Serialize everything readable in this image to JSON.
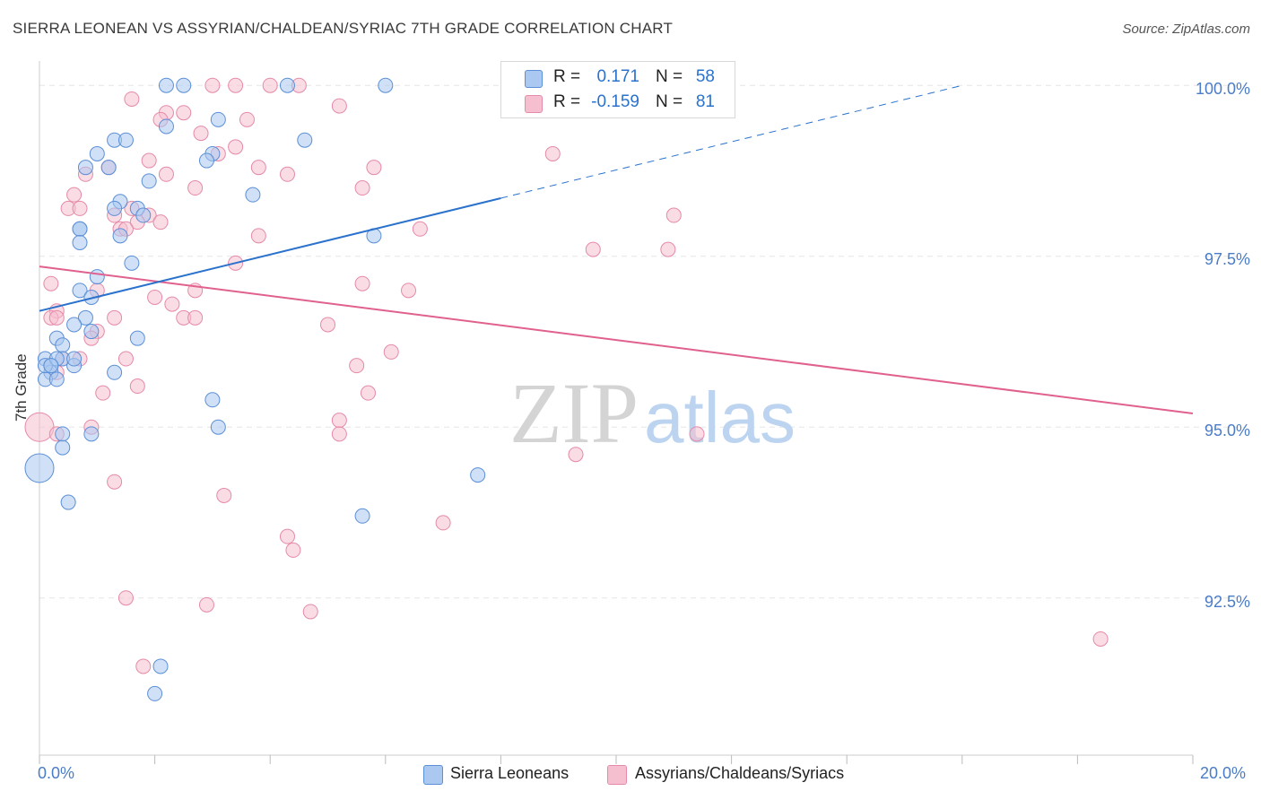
{
  "title": "SIERRA LEONEAN VS ASSYRIAN/CHALDEAN/SYRIAC 7TH GRADE CORRELATION CHART",
  "source": "Source: ZipAtlas.com",
  "watermark": {
    "zip": "ZIP",
    "atlas": "atlas"
  },
  "legend": {
    "series1": {
      "r_label": "R =",
      "r_value": "0.171",
      "n_label": "N =",
      "n_value": "58"
    },
    "series2": {
      "r_label": "R =",
      "r_value": "-0.159",
      "n_label": "N =",
      "n_value": "81"
    }
  },
  "bottom_legend": {
    "series1": "Sierra Leoneans",
    "series2": "Assyrians/Chaldeans/Syriacs"
  },
  "colors": {
    "blue_fill": "#aac8f0",
    "blue_stroke": "#5b8fd6",
    "blue_line": "#2a72cc",
    "pink_fill": "#f6bfd0",
    "pink_stroke": "#e58aa8",
    "pink_line": "#e0608e",
    "tick_label": "#4a7cc7",
    "grid": "#e6e6e6"
  },
  "chart_data": {
    "type": "scatter",
    "title": "SIERRA LEONEAN VS ASSYRIAN/CHALDEAN/SYRIAC 7TH GRADE CORRELATION CHART",
    "xlabel": "",
    "ylabel": "7th Grade",
    "xlim": [
      0,
      20
    ],
    "ylim": [
      90.2,
      100.2
    ],
    "x_tick_labels": [
      "0.0%",
      "20.0%"
    ],
    "y_ticks": [
      92.5,
      95.0,
      97.5,
      100.0
    ],
    "y_tick_labels": [
      "92.5%",
      "95.0%",
      "97.5%",
      "100.0%"
    ],
    "series": [
      {
        "name": "Sierra Leoneans",
        "r": 0.171,
        "n": 58,
        "trend": {
          "x_start": 0.0,
          "y_start": 96.7,
          "x_solid_end": 8.0,
          "y_solid_end": 98.35,
          "x_dash_end": 16.0,
          "y_dash_end": 100.0
        },
        "points": [
          [
            2.2,
            100.0
          ],
          [
            2.5,
            100.0
          ],
          [
            4.3,
            100.0
          ],
          [
            6.0,
            100.0
          ],
          [
            3.1,
            99.5
          ],
          [
            2.2,
            99.4
          ],
          [
            1.3,
            99.2
          ],
          [
            1.5,
            99.2
          ],
          [
            4.6,
            99.2
          ],
          [
            1.0,
            99.0
          ],
          [
            3.0,
            99.0
          ],
          [
            2.9,
            98.9
          ],
          [
            0.8,
            98.8
          ],
          [
            1.2,
            98.8
          ],
          [
            1.9,
            98.6
          ],
          [
            3.7,
            98.4
          ],
          [
            1.4,
            98.3
          ],
          [
            1.3,
            98.2
          ],
          [
            1.7,
            98.2
          ],
          [
            1.8,
            98.1
          ],
          [
            0.7,
            97.9
          ],
          [
            0.7,
            97.9
          ],
          [
            1.4,
            97.8
          ],
          [
            5.8,
            97.8
          ],
          [
            0.7,
            97.7
          ],
          [
            1.6,
            97.4
          ],
          [
            1.0,
            97.2
          ],
          [
            0.7,
            97.0
          ],
          [
            0.9,
            96.9
          ],
          [
            0.8,
            96.6
          ],
          [
            0.6,
            96.5
          ],
          [
            0.9,
            96.4
          ],
          [
            1.7,
            96.3
          ],
          [
            0.3,
            96.3
          ],
          [
            0.4,
            96.2
          ],
          [
            0.4,
            96.0
          ],
          [
            0.1,
            96.0
          ],
          [
            0.6,
            95.9
          ],
          [
            0.2,
            95.9
          ],
          [
            0.2,
            95.8
          ],
          [
            1.3,
            95.8
          ],
          [
            0.1,
            95.7
          ],
          [
            0.3,
            95.7
          ],
          [
            3.0,
            95.4
          ],
          [
            3.1,
            95.0
          ],
          [
            0.4,
            94.9
          ],
          [
            0.9,
            94.9
          ],
          [
            0.4,
            94.7
          ],
          [
            0.0,
            94.4
          ],
          [
            7.6,
            94.3
          ],
          [
            0.5,
            93.9
          ],
          [
            5.6,
            93.7
          ],
          [
            2.1,
            91.5
          ],
          [
            2.0,
            91.1
          ],
          [
            0.1,
            95.9
          ],
          [
            0.3,
            96.0
          ],
          [
            0.2,
            95.9
          ],
          [
            0.6,
            96.0
          ]
        ]
      },
      {
        "name": "Assyrians/Chaldeans/Syriacs",
        "r": -0.159,
        "n": 81,
        "trend": {
          "x_start": 0.0,
          "y_start": 97.35,
          "x_end": 20.0,
          "y_end": 95.2
        },
        "points": [
          [
            3.0,
            100.0
          ],
          [
            3.4,
            100.0
          ],
          [
            4.0,
            100.0
          ],
          [
            4.5,
            100.0
          ],
          [
            1.6,
            99.8
          ],
          [
            5.2,
            99.7
          ],
          [
            2.2,
            99.6
          ],
          [
            2.5,
            99.6
          ],
          [
            2.1,
            99.5
          ],
          [
            3.6,
            99.5
          ],
          [
            2.8,
            99.3
          ],
          [
            3.4,
            99.1
          ],
          [
            3.1,
            99.0
          ],
          [
            8.9,
            99.0
          ],
          [
            1.9,
            98.9
          ],
          [
            1.2,
            98.8
          ],
          [
            3.8,
            98.8
          ],
          [
            5.8,
            98.8
          ],
          [
            0.8,
            98.7
          ],
          [
            2.2,
            98.7
          ],
          [
            4.3,
            98.7
          ],
          [
            5.6,
            98.5
          ],
          [
            2.7,
            98.5
          ],
          [
            0.6,
            98.4
          ],
          [
            0.5,
            98.2
          ],
          [
            0.7,
            98.2
          ],
          [
            1.6,
            98.2
          ],
          [
            1.3,
            98.1
          ],
          [
            1.9,
            98.1
          ],
          [
            2.1,
            98.0
          ],
          [
            1.7,
            98.0
          ],
          [
            11.0,
            98.1
          ],
          [
            1.4,
            97.9
          ],
          [
            1.5,
            97.9
          ],
          [
            6.6,
            97.9
          ],
          [
            3.8,
            97.8
          ],
          [
            9.6,
            97.6
          ],
          [
            10.9,
            97.6
          ],
          [
            3.4,
            97.4
          ],
          [
            0.2,
            97.1
          ],
          [
            5.6,
            97.1
          ],
          [
            6.4,
            97.0
          ],
          [
            2.7,
            97.0
          ],
          [
            1.0,
            97.0
          ],
          [
            2.0,
            96.9
          ],
          [
            2.3,
            96.8
          ],
          [
            0.3,
            96.7
          ],
          [
            2.5,
            96.6
          ],
          [
            2.7,
            96.6
          ],
          [
            0.2,
            96.6
          ],
          [
            1.3,
            96.6
          ],
          [
            5.0,
            96.5
          ],
          [
            1.0,
            96.4
          ],
          [
            0.9,
            96.3
          ],
          [
            6.1,
            96.1
          ],
          [
            1.5,
            96.0
          ],
          [
            0.4,
            96.0
          ],
          [
            0.7,
            96.0
          ],
          [
            5.5,
            95.9
          ],
          [
            0.3,
            95.8
          ],
          [
            1.7,
            95.6
          ],
          [
            1.1,
            95.5
          ],
          [
            5.7,
            95.5
          ],
          [
            5.2,
            95.1
          ],
          [
            0.9,
            95.0
          ],
          [
            0.0,
            95.0
          ],
          [
            0.3,
            94.9
          ],
          [
            5.2,
            94.9
          ],
          [
            11.4,
            94.9
          ],
          [
            9.3,
            94.6
          ],
          [
            1.3,
            94.2
          ],
          [
            3.2,
            94.0
          ],
          [
            7.0,
            93.6
          ],
          [
            4.3,
            93.4
          ],
          [
            4.4,
            93.2
          ],
          [
            1.5,
            92.5
          ],
          [
            2.9,
            92.4
          ],
          [
            4.7,
            92.3
          ],
          [
            18.4,
            91.9
          ],
          [
            1.8,
            91.5
          ],
          [
            0.3,
            96.6
          ]
        ]
      }
    ]
  }
}
